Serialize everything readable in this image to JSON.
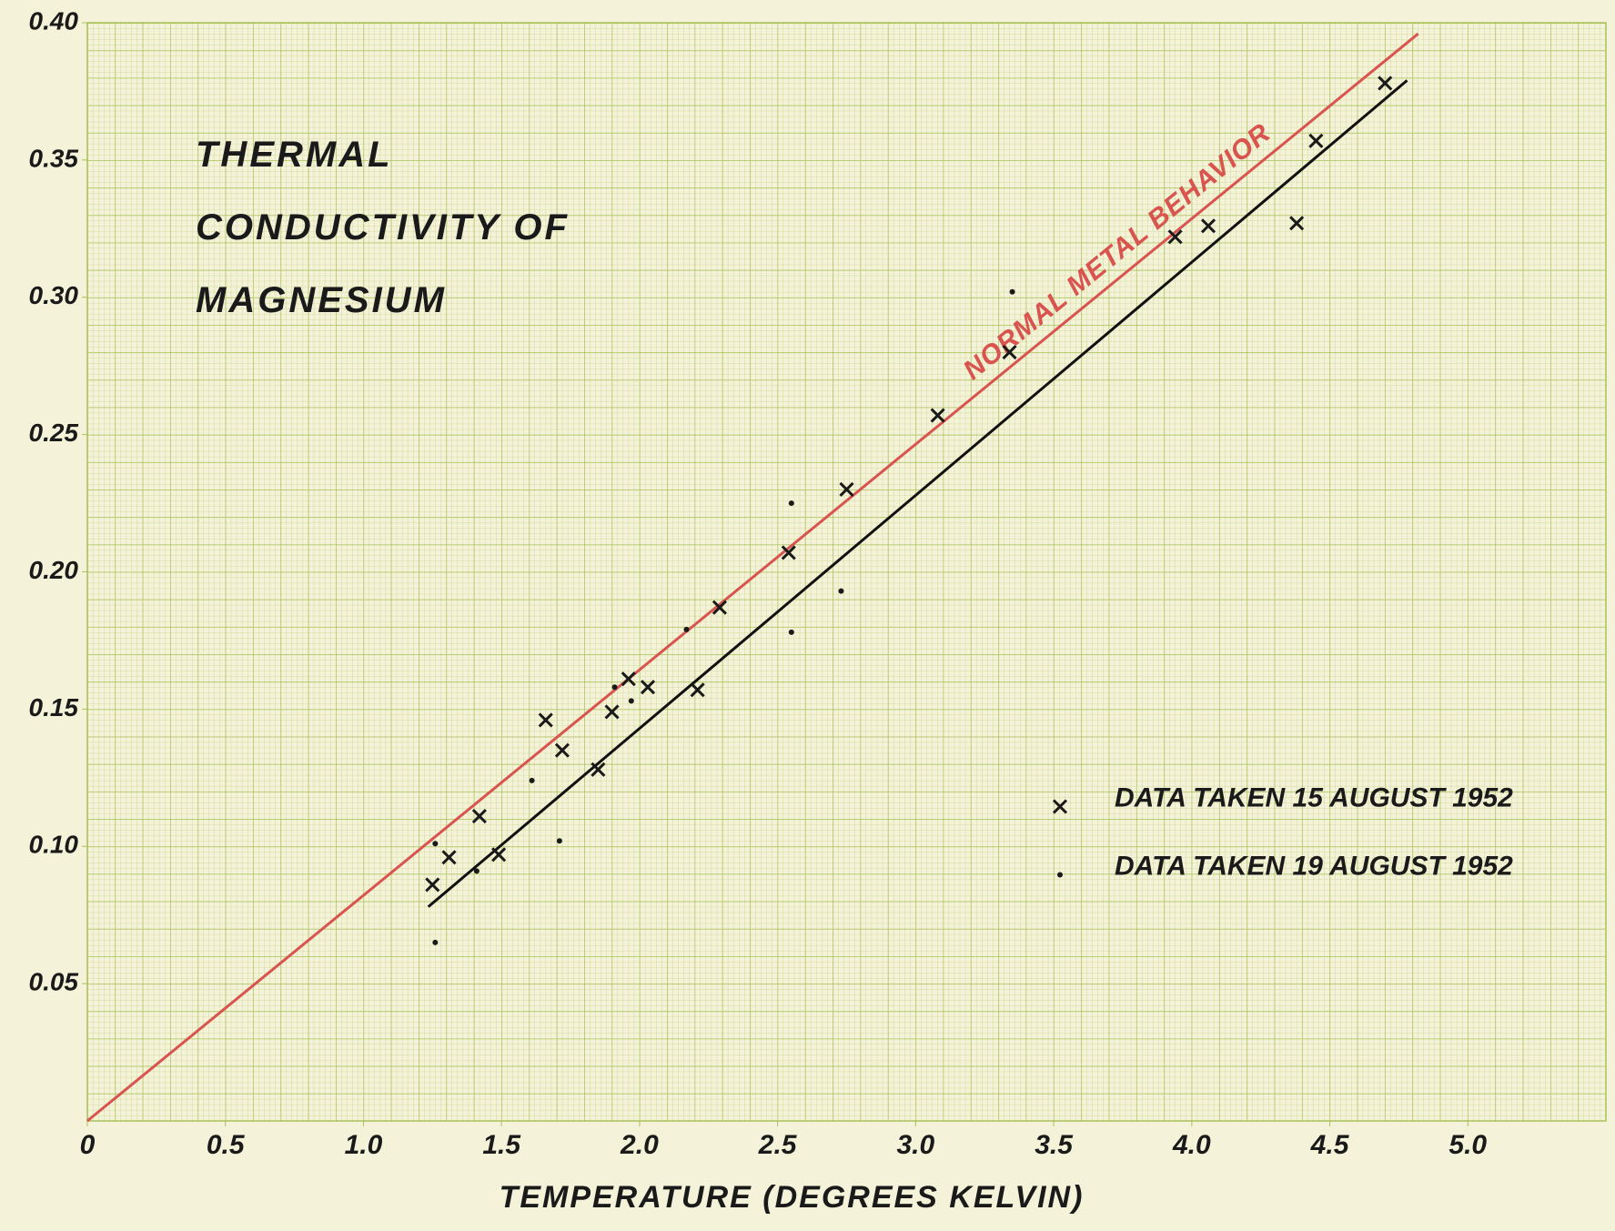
{
  "chart_data": {
    "type": "scatter",
    "title": "Thermal Conductivity of Magnesium",
    "xlabel": "Temperature (Degrees Kelvin)",
    "xlim": [
      0,
      5.5
    ],
    "ylim": [
      0,
      0.4
    ],
    "xticks": [
      0,
      0.5,
      {
        "value": 1,
        "label": "1.0"
      },
      1.5,
      {
        "value": 2,
        "label": "2.0"
      },
      2.5,
      {
        "value": 3,
        "label": "3.0"
      },
      3.5,
      {
        "value": 4,
        "label": "4.0"
      },
      4.5,
      {
        "value": 5,
        "label": "5.0"
      }
    ],
    "yticks": [
      0.05,
      {
        "value": 0.1,
        "label": "0.10"
      },
      0.15,
      {
        "value": 0.2,
        "label": "0.20"
      },
      0.25,
      {
        "value": 0.3,
        "label": "0.30"
      },
      0.35,
      {
        "value": 0.4,
        "label": "0.40"
      }
    ],
    "grid": true,
    "legend": "center right",
    "series": [
      {
        "name": "Data taken 15 August 1952",
        "marker": "x",
        "color": "#1a1a1a",
        "x": [
          1.25,
          1.31,
          1.42,
          1.49,
          1.66,
          1.72,
          1.85,
          1.9,
          1.96,
          2.03,
          2.21,
          2.29,
          2.54,
          2.75,
          3.08,
          3.34,
          3.94,
          4.06,
          4.38,
          4.45,
          4.7
        ],
        "values": [
          0.086,
          0.096,
          0.111,
          0.097,
          0.146,
          0.135,
          0.128,
          0.149,
          0.161,
          0.158,
          0.157,
          0.187,
          0.207,
          0.23,
          0.257,
          0.28,
          0.322,
          0.326,
          0.327,
          0.357,
          0.378
        ]
      },
      {
        "name": "Data taken 19 August 1952",
        "marker": "dot",
        "color": "#1a1a1a",
        "x": [
          1.26,
          1.26,
          1.41,
          1.61,
          1.71,
          1.91,
          1.97,
          2.17,
          2.55,
          2.55,
          2.73,
          3.35
        ],
        "values": [
          0.101,
          0.065,
          0.091,
          0.124,
          0.102,
          0.158,
          0.153,
          0.179,
          0.225,
          0.178,
          0.193,
          0.302
        ]
      }
    ],
    "lines": [
      {
        "label": "Normal Metal Behavior",
        "color": "#d9534f",
        "x": [
          0,
          4.82
        ],
        "values": [
          0,
          0.396
        ]
      },
      {
        "color": "#111111",
        "x": [
          1.235,
          4.78
        ],
        "values": [
          0.078,
          0.379
        ]
      }
    ]
  }
}
